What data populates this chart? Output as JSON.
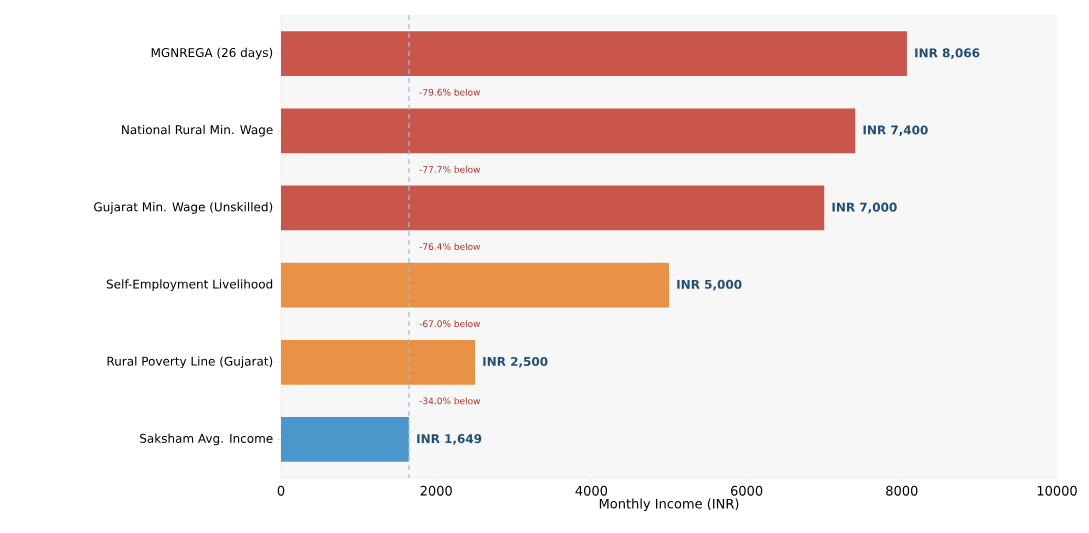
{
  "chart_data": {
    "type": "bar",
    "orientation": "horizontal",
    "xlabel": "Monthly Income (INR)",
    "categories": [
      "MGNREGA (26 days)",
      "National Rural Min. Wage",
      "Gujarat Min. Wage (Unskilled)",
      "Self-Employment Livelihood",
      "Rural Poverty Line (Gujarat)",
      "Saksham Avg. Income"
    ],
    "values": [
      8066,
      7400,
      7000,
      5000,
      2500,
      1649
    ],
    "colors": [
      "#c9564b",
      "#c9564b",
      "#c9564b",
      "#e99144",
      "#e99144",
      "#4a98c9"
    ],
    "value_labels": [
      "INR 8,066",
      "INR 7,400",
      "INR 7,000",
      "INR 5,000",
      "INR 2,500",
      "INR 1,649"
    ],
    "xlim": [
      0,
      10000
    ],
    "xticks": [
      0,
      2000,
      4000,
      6000,
      8000,
      10000
    ],
    "ref_lines": [
      {
        "axis": "x",
        "value": 1649,
        "color": "#8ec1e3",
        "line_style": "dashed"
      }
    ],
    "annotations": [
      "-79.6% below",
      "-77.7% below",
      "-76.4% below",
      "-67.0% below",
      "-34.0% below"
    ],
    "grid": false
  }
}
